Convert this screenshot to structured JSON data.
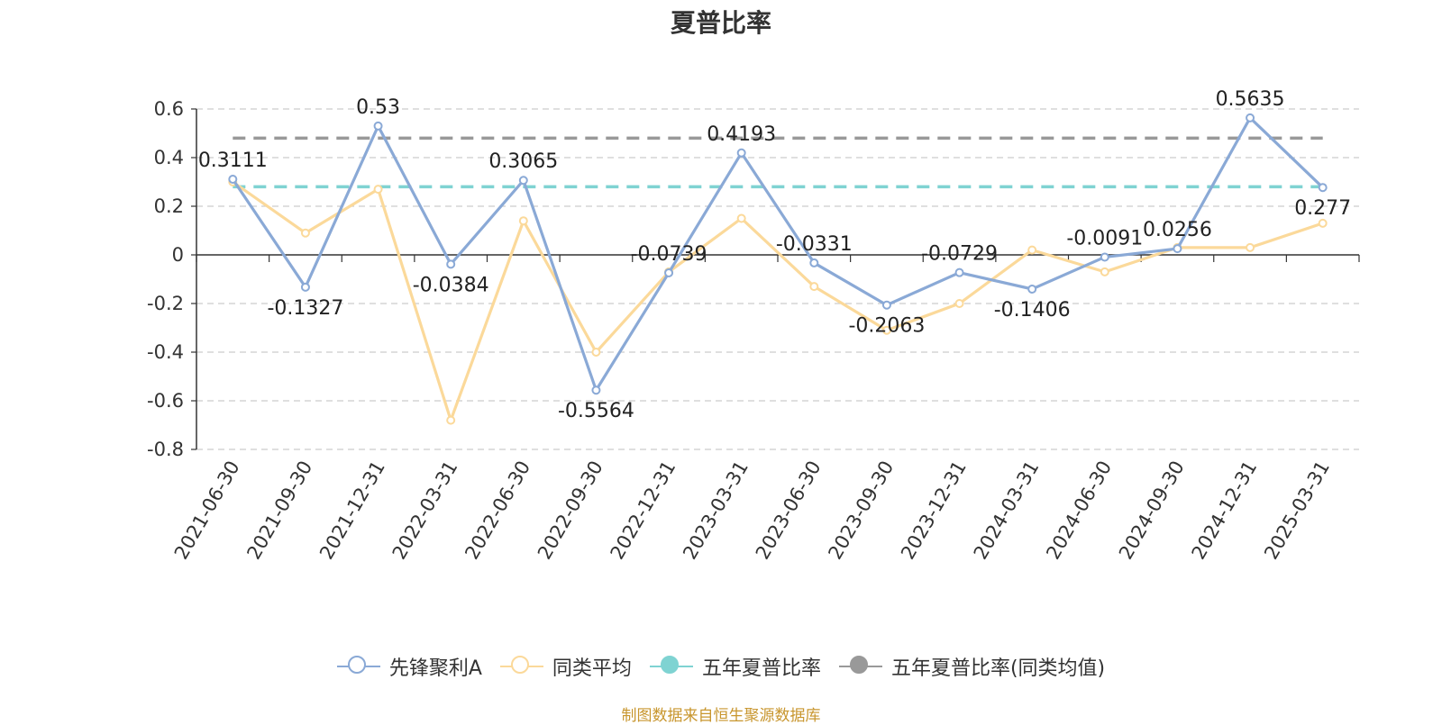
{
  "chart_data": {
    "type": "line",
    "title": "夏普比率",
    "categories": [
      "2021-06-30",
      "2021-09-30",
      "2021-12-31",
      "2022-03-31",
      "2022-06-30",
      "2022-09-30",
      "2022-12-31",
      "2023-03-31",
      "2023-06-30",
      "2023-09-30",
      "2023-12-31",
      "2024-03-31",
      "2024-06-30",
      "2024-09-30",
      "2024-12-31",
      "2025-03-31"
    ],
    "ylim": [
      -0.8,
      0.6
    ],
    "yticks": [
      0.6,
      0.4,
      0.2,
      0,
      -0.2,
      -0.4,
      -0.6,
      -0.8
    ],
    "ytick_labels": [
      "0.6",
      "0.4",
      "0.2",
      "0",
      "-0.2",
      "-0.4",
      "-0.6",
      "-0.8"
    ],
    "grid": true,
    "legend_position": "bottom",
    "series": [
      {
        "name": "先锋聚利A",
        "color": "#8aa9d6",
        "marker": "circle",
        "show_labels": true,
        "values": [
          0.3111,
          -0.1327,
          0.53,
          -0.0384,
          0.3065,
          -0.5564,
          -0.0739,
          0.4193,
          -0.0331,
          -0.2063,
          -0.0729,
          -0.1406,
          -0.0091,
          0.0256,
          0.5635,
          0.277
        ],
        "labels": [
          "0.3111",
          "-0.1327",
          "0.53",
          "-0.0384",
          "0.3065",
          "-0.5564",
          "-0.0739",
          "0.4193",
          "-0.0331",
          "-0.2063",
          "-0.0729",
          "-0.1406",
          "-0.0091",
          "0.0256",
          "0.5635",
          "0.277"
        ]
      },
      {
        "name": "同类平均",
        "color": "#fbd99a",
        "marker": "circle",
        "show_labels": false,
        "values": [
          0.3,
          0.09,
          0.27,
          -0.68,
          0.14,
          -0.4,
          -0.07,
          0.15,
          -0.13,
          -0.31,
          -0.2,
          0.02,
          -0.07,
          0.03,
          0.03,
          0.13
        ]
      },
      {
        "name": "五年夏普比率",
        "color": "#7fd3d2",
        "style": "dashed",
        "marker": "circle-filled",
        "value": 0.28
      },
      {
        "name": "五年夏普比率(同类均值)",
        "color": "#999999",
        "style": "dashed",
        "marker": "circle-filled",
        "value": 0.48
      }
    ]
  },
  "source": "制图数据来自恒生聚源数据库"
}
